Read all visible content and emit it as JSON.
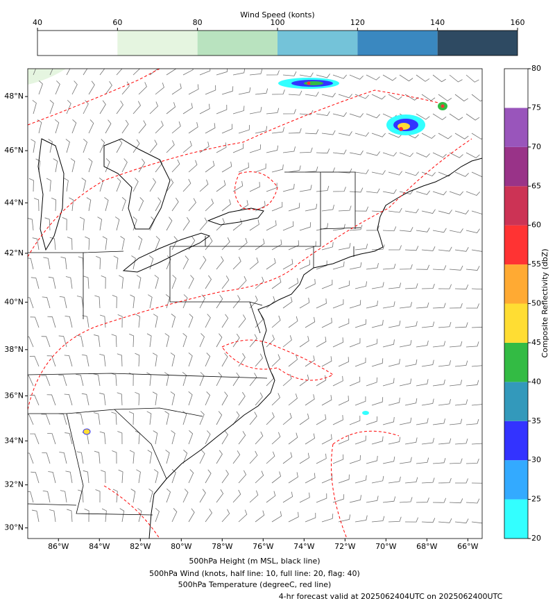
{
  "wind_colorbar": {
    "title": "Wind Speed (konts)",
    "lim": [
      40,
      160
    ],
    "ticks": [
      40,
      60,
      80,
      100,
      120,
      140,
      160
    ],
    "colors": [
      "#ffffff",
      "#e5f5e0",
      "#b9e3bf",
      "#74c3d9",
      "#3a88c0",
      "#2e4a62"
    ]
  },
  "reflectivity_colorbar": {
    "label": "Composite Reflectivity (dbZ)",
    "lim": [
      20,
      80
    ],
    "ticks": [
      20,
      25,
      30,
      35,
      40,
      45,
      50,
      55,
      60,
      65,
      70,
      75,
      80
    ],
    "colors": [
      "#33ffff",
      "#33aaff",
      "#3333ff",
      "#3399bb",
      "#33bb44",
      "#ffdd33",
      "#ffaa33",
      "#ff3333",
      "#cc3355",
      "#993388",
      "#9955bb",
      "#ffffff"
    ]
  },
  "map": {
    "xlim": [
      -87.5,
      -65.3
    ],
    "ylim": [
      29.5,
      49
    ],
    "xticks": [
      {
        "value": -86,
        "label": "86°W"
      },
      {
        "value": -84,
        "label": "84°W"
      },
      {
        "value": -82,
        "label": "82°W"
      },
      {
        "value": -80,
        "label": "80°W"
      },
      {
        "value": -78,
        "label": "78°W"
      },
      {
        "value": -76,
        "label": "76°W"
      },
      {
        "value": -74,
        "label": "74°W"
      },
      {
        "value": -72,
        "label": "72°W"
      },
      {
        "value": -70,
        "label": "70°W"
      },
      {
        "value": -68,
        "label": "68°W"
      },
      {
        "value": -66,
        "label": "66°W"
      }
    ],
    "yticks": [
      {
        "value": 30,
        "label": "30°N"
      },
      {
        "value": 32,
        "label": "32°N"
      },
      {
        "value": 34,
        "label": "34°N"
      },
      {
        "value": 36,
        "label": "36°N"
      },
      {
        "value": 38,
        "label": "38°N"
      },
      {
        "value": 40,
        "label": "40°N"
      },
      {
        "value": 42,
        "label": "42°N"
      },
      {
        "value": 44,
        "label": "44°N"
      },
      {
        "value": 46,
        "label": "46°N"
      },
      {
        "value": 48,
        "label": "48°N"
      }
    ]
  },
  "captions": [
    {
      "text": "500hPa Height (m MSL, black line)",
      "color": "#000000"
    },
    {
      "text": "500hPa Wind (knots, half line: 10, full line: 20, flag: 40)",
      "color": "#808080"
    },
    {
      "text": "500hPa Temperature (degreeC, red line)",
      "color": "#ff0000"
    },
    {
      "text": "4-hr forecast valid at 2025062404UTC on 2025062400UTC",
      "color": "#ff0000"
    }
  ]
}
